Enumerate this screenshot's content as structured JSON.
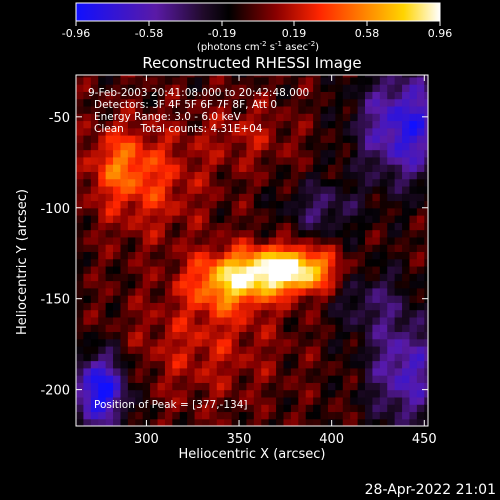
{
  "colorbar": {
    "ticks": [
      "-0.96",
      "-0.58",
      "-0.19",
      "0.19",
      "0.58",
      "0.96"
    ],
    "unit_label": {
      "prefix": "(photons cm",
      "exp1": "-2",
      "mid1": " s",
      "exp2": "-1",
      "mid2": " asec",
      "exp3": "-2",
      "suffix": ")"
    }
  },
  "annotations": {
    "line1": "9-Feb-2003 20:41:08.000 to 20:42:48.000",
    "line2": "Detectors: 3F 4F 5F 6F 7F 8F, Att 0",
    "line3": "Energy Range: 3.0 - 6.0 keV",
    "line4": "Clean     Total counts: 4.31E+04",
    "peak": "Position of Peak = [377,-134]"
  },
  "timestamp": "28-Apr-2022 21:01",
  "chart_data": {
    "type": "heatmap",
    "title": "Reconstructed RHESSI Image",
    "xlabel": "Heliocentric X (arcsec)",
    "ylabel": "Heliocentric Y (arcsec)",
    "xlim": [
      262,
      452
    ],
    "ylim": [
      -220,
      -27
    ],
    "xticks": [
      300,
      350,
      400,
      450
    ],
    "yticks": [
      -50,
      -100,
      -150,
      -200
    ],
    "colorscale": {
      "name": "blue-purple-black-red-yellow-white",
      "range": [
        -0.96,
        0.96
      ]
    },
    "peak_position": [
      377,
      -134
    ],
    "peak_value": 0.96,
    "colors": {
      "background": "#000000",
      "axis": "#ffffff",
      "text": "#ffffff"
    }
  }
}
